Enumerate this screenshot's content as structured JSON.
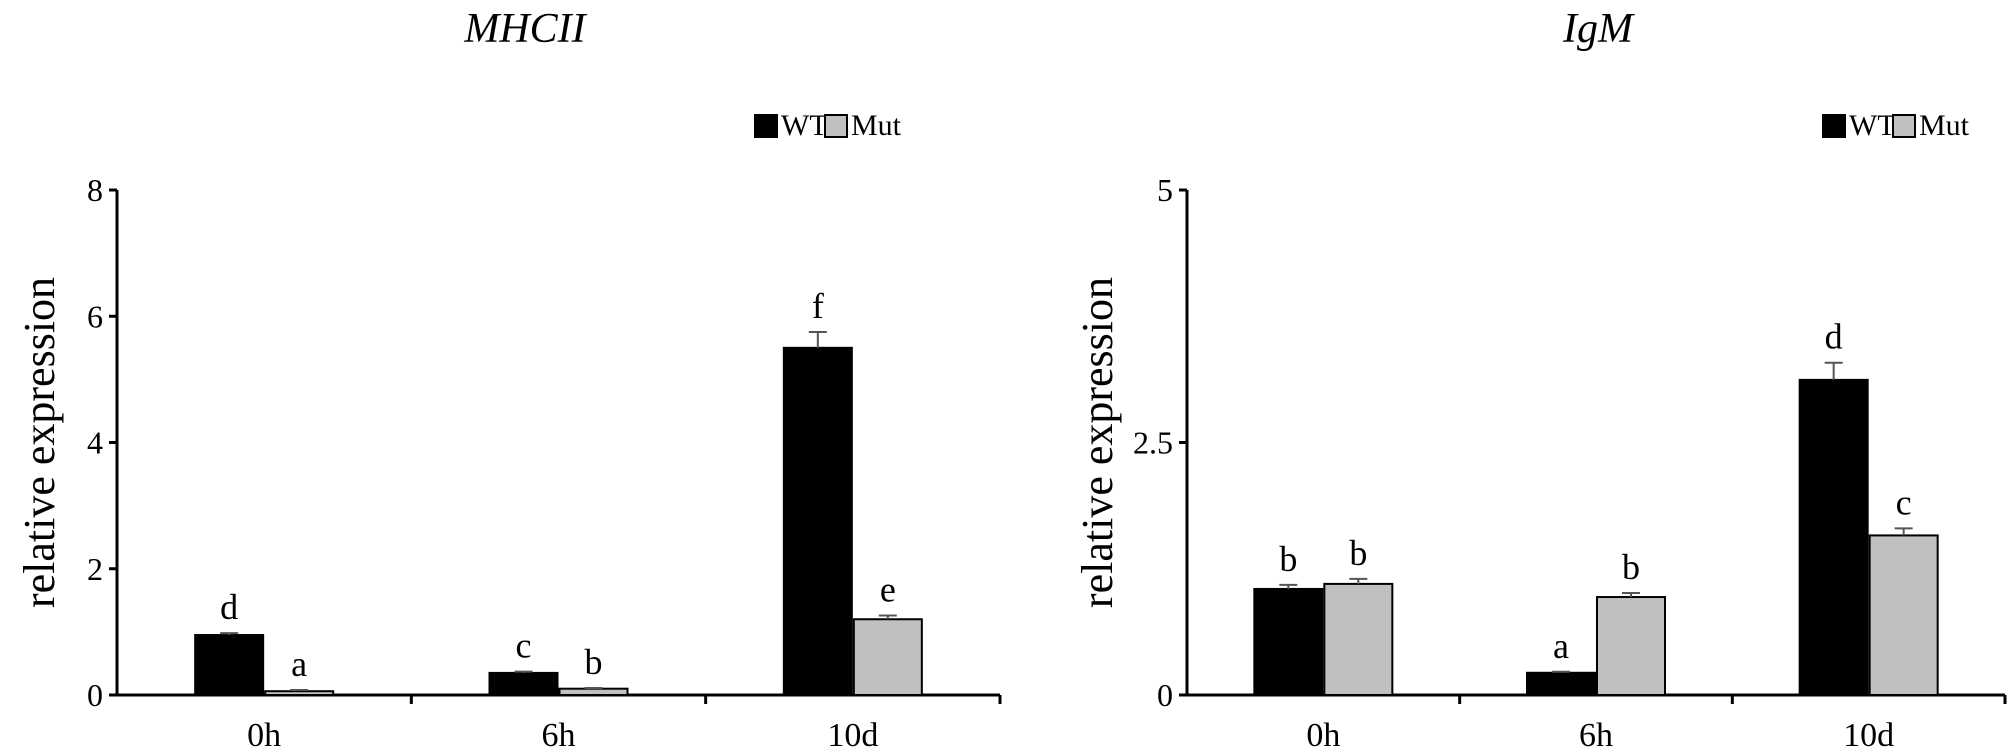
{
  "chart_data": [
    {
      "type": "bar",
      "title": "MHCII",
      "ylabel": "relative expression",
      "xlabel": "",
      "ylim": [
        0,
        8
      ],
      "yticks": [
        0,
        2,
        4,
        6,
        8
      ],
      "categories": [
        "0h",
        "6h",
        "10d"
      ],
      "legend": "top-right",
      "series": [
        {
          "name": "WT",
          "color": "#000000",
          "values": [
            0.95,
            0.35,
            5.5
          ],
          "errors": [
            0.03,
            0.02,
            0.25
          ],
          "labels": [
            "d",
            "c",
            "f"
          ]
        },
        {
          "name": "Mut",
          "color": "#c0c0c0",
          "values": [
            0.06,
            0.1,
            1.2
          ],
          "errors": [
            0.02,
            0.01,
            0.06
          ],
          "labels": [
            "a",
            "b",
            "e"
          ]
        }
      ]
    },
    {
      "type": "bar",
      "title": "IgM",
      "ylabel": "relative expression",
      "xlabel": "",
      "ylim": [
        0,
        5
      ],
      "yticks": [
        0,
        2.5,
        5
      ],
      "categories": [
        "0h",
        "6h",
        "10d"
      ],
      "legend": "top-right",
      "series": [
        {
          "name": "WT",
          "color": "#000000",
          "values": [
            1.05,
            0.22,
            3.12
          ],
          "errors": [
            0.04,
            0.01,
            0.17
          ],
          "labels": [
            "b",
            "a",
            "d"
          ]
        },
        {
          "name": "Mut",
          "color": "#c0c0c0",
          "values": [
            1.1,
            0.97,
            1.58
          ],
          "errors": [
            0.05,
            0.04,
            0.07
          ],
          "labels": [
            "b",
            "b",
            "c"
          ]
        }
      ]
    }
  ]
}
